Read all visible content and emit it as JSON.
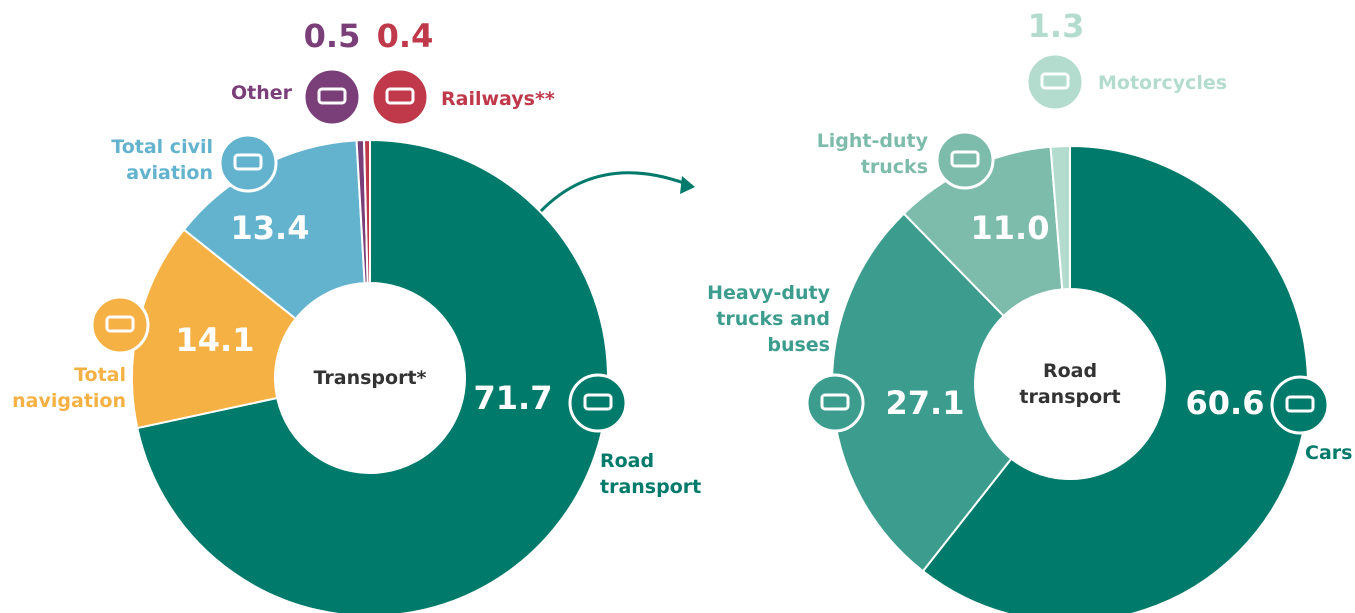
{
  "chart_data": [
    {
      "type": "donut",
      "center_label": "Transport*",
      "categories": [
        "Road transport",
        "Total navigation",
        "Total civil aviation",
        "Other",
        "Railways**"
      ],
      "values": [
        71.7,
        14.1,
        13.4,
        0.5,
        0.4
      ],
      "value_labels": [
        "71.7",
        "14.1",
        "13.4",
        "0.5",
        "0.4"
      ],
      "colors": [
        "#007a6a",
        "#f5b143",
        "#63b3cf",
        "#7a3e78",
        "#c0394b"
      ]
    },
    {
      "type": "donut",
      "center_label": "Road transport",
      "categories": [
        "Cars",
        "Heavy-duty trucks and buses",
        "Light-duty trucks",
        "Motorcycles"
      ],
      "values": [
        60.6,
        27.1,
        11.0,
        1.3
      ],
      "value_labels": [
        "60.6",
        "27.1",
        "11.0",
        "1.3"
      ],
      "colors": [
        "#007a6a",
        "#3c9d8e",
        "#7dbbab",
        "#b3dccf"
      ]
    }
  ]
}
